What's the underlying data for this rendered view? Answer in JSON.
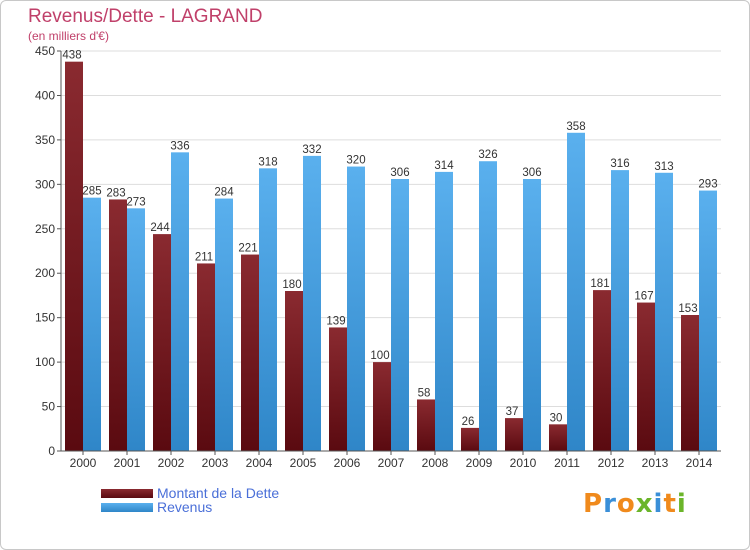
{
  "chart_data": {
    "type": "bar",
    "title": "Revenus/Dette - LAGRAND",
    "subtitle": "(en milliers d'€)",
    "categories": [
      "2000",
      "2001",
      "2002",
      "2003",
      "2004",
      "2005",
      "2006",
      "2007",
      "2008",
      "2009",
      "2010",
      "2011",
      "2012",
      "2013",
      "2014"
    ],
    "series": [
      {
        "name": "Montant de la Dette",
        "color": "#7a1a1f",
        "values": [
          438,
          283,
          244,
          211,
          221,
          180,
          139,
          100,
          58,
          26,
          37,
          30,
          181,
          167,
          153
        ]
      },
      {
        "name": "Revenus",
        "color": "#3f9ce0",
        "values": [
          285,
          273,
          336,
          284,
          318,
          332,
          320,
          306,
          314,
          326,
          306,
          358,
          316,
          313,
          293
        ]
      }
    ],
    "ylim": [
      0,
      450
    ],
    "yticks": [
      0,
      50,
      100,
      150,
      200,
      250,
      300,
      350,
      400,
      450
    ],
    "grid": true,
    "legend_position": "bottom-left"
  },
  "logo": {
    "letters": [
      {
        "ch": "P",
        "color": "#f08a1c"
      },
      {
        "ch": "r",
        "color": "#3a8fd8"
      },
      {
        "ch": "o",
        "color": "#f08a1c"
      },
      {
        "ch": "x",
        "color": "#6bb52a"
      },
      {
        "ch": "i",
        "color": "#3a8fd8"
      },
      {
        "ch": "t",
        "color": "#f08a1c"
      },
      {
        "ch": "i",
        "color": "#6bb52a"
      }
    ]
  }
}
